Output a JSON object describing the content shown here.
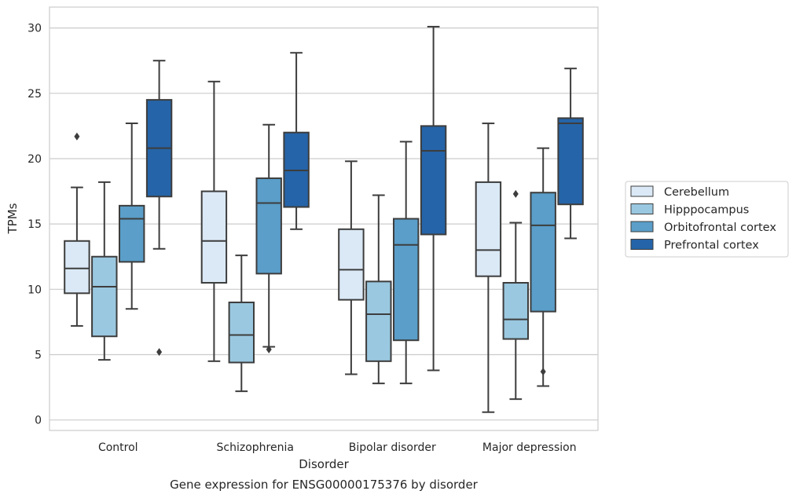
{
  "chart_data": {
    "type": "box",
    "title": "Gene expression for ENSG00000175376 by disorder",
    "xlabel": "Disorder",
    "ylabel": "TPMs",
    "ylim": [
      -0.8,
      31.6
    ],
    "yticks": [
      0,
      5,
      10,
      15,
      20,
      25,
      30
    ],
    "grid": "horizontal",
    "legend_position": "right",
    "categories": [
      "Control",
      "Schizophrenia",
      "Bipolar disorder",
      "Major depression"
    ],
    "series": [
      {
        "name": "Cerebellum",
        "color": "#dbe9f6",
        "boxes": [
          {
            "whislo": 7.2,
            "q1": 9.7,
            "med": 11.6,
            "q3": 13.7,
            "whishi": 17.8,
            "fliers": [
              21.7
            ]
          },
          {
            "whislo": 4.5,
            "q1": 10.5,
            "med": 13.7,
            "q3": 17.5,
            "whishi": 25.9,
            "fliers": []
          },
          {
            "whislo": 3.5,
            "q1": 9.2,
            "med": 11.5,
            "q3": 14.6,
            "whishi": 19.8,
            "fliers": []
          },
          {
            "whislo": 0.6,
            "q1": 11.0,
            "med": 13.0,
            "q3": 18.2,
            "whishi": 22.7,
            "fliers": []
          }
        ]
      },
      {
        "name": "Hipppocampus",
        "color": "#9ac8e0",
        "boxes": [
          {
            "whislo": 4.6,
            "q1": 6.4,
            "med": 10.2,
            "q3": 12.5,
            "whishi": 18.2,
            "fliers": []
          },
          {
            "whislo": 2.2,
            "q1": 4.4,
            "med": 6.5,
            "q3": 9.0,
            "whishi": 12.6,
            "fliers": []
          },
          {
            "whislo": 2.8,
            "q1": 4.5,
            "med": 8.1,
            "q3": 10.6,
            "whishi": 17.2,
            "fliers": []
          },
          {
            "whislo": 1.6,
            "q1": 6.2,
            "med": 7.7,
            "q3": 10.5,
            "whishi": 15.1,
            "fliers": [
              17.3
            ]
          }
        ]
      },
      {
        "name": "Orbitofrontal cortex",
        "color": "#5a9ec9",
        "boxes": [
          {
            "whislo": 8.5,
            "q1": 12.1,
            "med": 15.4,
            "q3": 16.4,
            "whishi": 22.7,
            "fliers": []
          },
          {
            "whislo": 5.6,
            "q1": 11.2,
            "med": 16.6,
            "q3": 18.5,
            "whishi": 22.6,
            "fliers": [
              5.4
            ]
          },
          {
            "whislo": 2.8,
            "q1": 6.1,
            "med": 13.4,
            "q3": 15.4,
            "whishi": 21.3,
            "fliers": []
          },
          {
            "whislo": 2.6,
            "q1": 8.3,
            "med": 14.9,
            "q3": 17.4,
            "whishi": 20.8,
            "fliers": [
              3.7
            ]
          }
        ]
      },
      {
        "name": "Prefrontal cortex",
        "color": "#2564a8",
        "boxes": [
          {
            "whislo": 13.1,
            "q1": 17.1,
            "med": 20.8,
            "q3": 24.5,
            "whishi": 27.5,
            "fliers": [
              5.2
            ]
          },
          {
            "whislo": 14.6,
            "q1": 16.3,
            "med": 19.1,
            "q3": 22.0,
            "whishi": 28.1,
            "fliers": []
          },
          {
            "whislo": 3.8,
            "q1": 14.2,
            "med": 20.6,
            "q3": 22.5,
            "whishi": 30.1,
            "fliers": []
          },
          {
            "whislo": 13.9,
            "q1": 16.5,
            "med": 22.7,
            "q3": 23.1,
            "whishi": 26.9,
            "fliers": []
          }
        ]
      }
    ]
  }
}
